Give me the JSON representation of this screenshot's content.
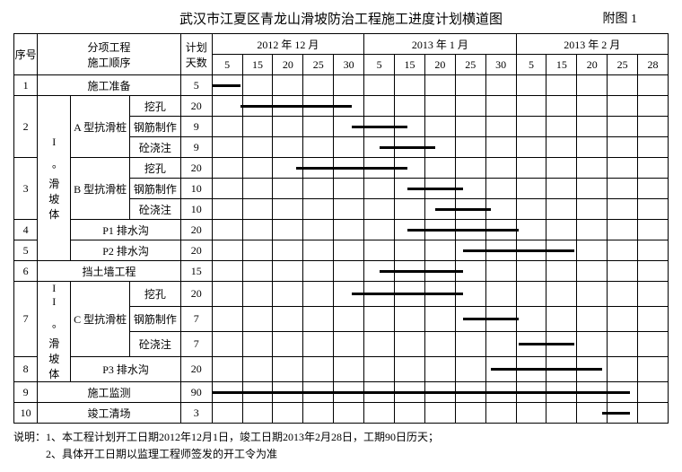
{
  "title": "武汉市江夏区青龙山滑坡防治工程施工进度计划横道图",
  "appendix": "附图 1",
  "headers": {
    "seq": "序号",
    "item": "分项工程\n施工顺序",
    "days": "计划天数",
    "months": [
      "2012 年 12 月",
      "2013 年 1 月",
      "2013 年 2 月"
    ],
    "dayCols": [
      "5",
      "15",
      "20",
      "25",
      "30",
      "5",
      "15",
      "20",
      "25",
      "30",
      "5",
      "15",
      "20",
      "25",
      "28"
    ]
  },
  "rows": [
    {
      "seq": "1",
      "g1": "",
      "g2": "施工准备",
      "g3": "",
      "span": 3,
      "days": "5",
      "barStart": 0,
      "barEnd": 1
    },
    {
      "seq": "2",
      "g1": "",
      "g2": "A 型抗滑桩",
      "g3": "挖孔",
      "days": "20",
      "barStart": 1,
      "barEnd": 5,
      "g2rows": 3,
      "g1label": "I °滑坡体",
      "g1rows": 8
    },
    {
      "seq": "",
      "g3": "钢筋制作",
      "days": "9",
      "barStart": 5,
      "barEnd": 7
    },
    {
      "seq": "",
      "g3": "砼浇注",
      "days": "9",
      "barStart": 6,
      "barEnd": 8
    },
    {
      "seq": "3",
      "g2": "B 型抗滑桩",
      "g3": "挖孔",
      "days": "20",
      "barStart": 3,
      "barEnd": 7,
      "g2rows": 3
    },
    {
      "seq": "",
      "g3": "钢筋制作",
      "days": "10",
      "barStart": 7,
      "barEnd": 9
    },
    {
      "seq": "",
      "g3": "砼浇注",
      "days": "10",
      "barStart": 8,
      "barEnd": 10
    },
    {
      "seq": "4",
      "g2": "P1 排水沟",
      "g3": "",
      "span": 2,
      "days": "20",
      "barStart": 7,
      "barEnd": 11
    },
    {
      "seq": "5",
      "g2": "P2 排水沟",
      "g3": "",
      "span": 2,
      "days": "20",
      "barStart": 9,
      "barEnd": 13
    },
    {
      "seq": "6",
      "g2": "挡土墙工程",
      "g3": "",
      "span": 3,
      "days": "15",
      "barStart": 6,
      "barEnd": 9
    },
    {
      "seq": "7",
      "g1label": "II °滑坡体",
      "g1rows": 4,
      "g2": "C 型抗滑桩",
      "g3": "挖孔",
      "days": "20",
      "barStart": 5,
      "barEnd": 9,
      "g2rows": 3
    },
    {
      "seq": "",
      "g3": "钢筋制作",
      "days": "7",
      "barStart": 9,
      "barEnd": 11
    },
    {
      "seq": "",
      "g3": "砼浇注",
      "days": "7",
      "barStart": 11,
      "barEnd": 13
    },
    {
      "seq": "8",
      "g2": "P3 排水沟",
      "g3": "",
      "span": 2,
      "days": "20",
      "barStart": 10,
      "barEnd": 14
    },
    {
      "seq": "9",
      "g2": "施工监测",
      "g3": "",
      "span": 3,
      "days": "90",
      "barStart": 0,
      "barEnd": 15
    },
    {
      "seq": "10",
      "g2": "竣工清场",
      "g3": "",
      "span": 3,
      "days": "3",
      "barStart": 14,
      "barEnd": 15
    }
  ],
  "notes": [
    "说明：1、本工程计划开工日期2012年12月1日，竣工日期2013年2月28日，工期90日历天；",
    "　　　2、具体开工日期以监理工程师签发的开工令为准"
  ]
}
